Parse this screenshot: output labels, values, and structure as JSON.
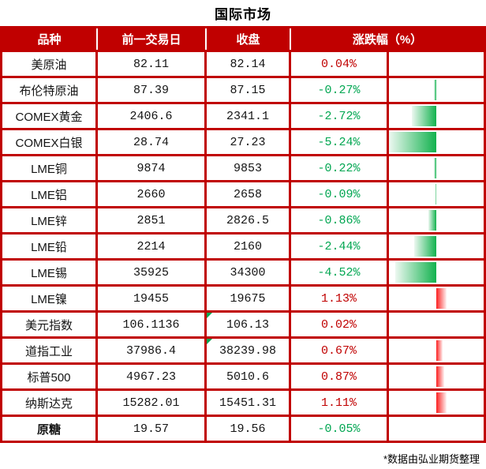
{
  "title": "国际市场",
  "table": {
    "headers": [
      "品种",
      "前一交易日",
      "收盘",
      "涨跌幅（%）"
    ],
    "bar_column": {
      "axis": "cell-midpoint",
      "max_abs_percent": 5.24,
      "up_bar_color": "#fb1f1f",
      "down_bar_color": "#12b24e"
    },
    "rows": [
      {
        "name": "美原油",
        "prev": "82.11",
        "close": "82.14",
        "pct": "0.04%",
        "value": 0.04
      },
      {
        "name": "布伦特原油",
        "prev": "87.39",
        "close": "87.15",
        "pct": "-0.27%",
        "value": -0.27
      },
      {
        "name": "COMEX黄金",
        "prev": "2406.6",
        "close": "2341.1",
        "pct": "-2.72%",
        "value": -2.72
      },
      {
        "name": "COMEX白银",
        "prev": "28.74",
        "close": "27.23",
        "pct": "-5.24%",
        "value": -5.24
      },
      {
        "name": "LME铜",
        "prev": "9874",
        "close": "9853",
        "pct": "-0.22%",
        "value": -0.22
      },
      {
        "name": "LME铝",
        "prev": "2660",
        "close": "2658",
        "pct": "-0.09%",
        "value": -0.09
      },
      {
        "name": "LME锌",
        "prev": "2851",
        "close": "2826.5",
        "pct": "-0.86%",
        "value": -0.86
      },
      {
        "name": "LME铅",
        "prev": "2214",
        "close": "2160",
        "pct": "-2.44%",
        "value": -2.44
      },
      {
        "name": "LME锡",
        "prev": "35925",
        "close": "34300",
        "pct": "-4.52%",
        "value": -4.52
      },
      {
        "name": "LME镍",
        "prev": "19455",
        "close": "19675",
        "pct": "1.13%",
        "value": 1.13
      },
      {
        "name": "美元指数",
        "prev": "106.1136",
        "close": "106.13",
        "pct": "0.02%",
        "value": 0.02,
        "comment_marker": true
      },
      {
        "name": "道指工业",
        "prev": "37986.4",
        "close": "38239.98",
        "pct": "0.67%",
        "value": 0.67,
        "comment_marker": true
      },
      {
        "name": "标普500",
        "prev": "4967.23",
        "close": "5010.6",
        "pct": "0.87%",
        "value": 0.87
      },
      {
        "name": "纳斯达克",
        "prev": "15282.01",
        "close": "15451.31",
        "pct": "1.11%",
        "value": 1.11
      },
      {
        "name": "原糖",
        "prev": "19.57",
        "close": "19.56",
        "pct": "-0.05%",
        "value": -0.05,
        "bold": true
      }
    ]
  },
  "footer": {
    "note": "*数据由弘业期货整理"
  },
  "colors": {
    "header_bg": "#c00000",
    "grid_border": "#c00000",
    "header_text": "#ffffff",
    "up_text": "#c00000",
    "down_text": "#00a651",
    "comment_triangle": "#00a651"
  }
}
